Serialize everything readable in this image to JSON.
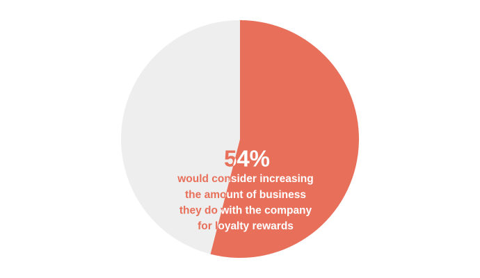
{
  "chart_data": {
    "type": "pie",
    "values": [
      54,
      46
    ],
    "value_labels": [
      "54%",
      null
    ],
    "colors": [
      "#e8705a",
      "#eeeeee"
    ],
    "start_angle": 0,
    "direction": "clockwise",
    "annotation_lines": [
      "would consider increasing",
      "the amount of business",
      "they do with the company",
      "for loyalty rewards"
    ]
  }
}
